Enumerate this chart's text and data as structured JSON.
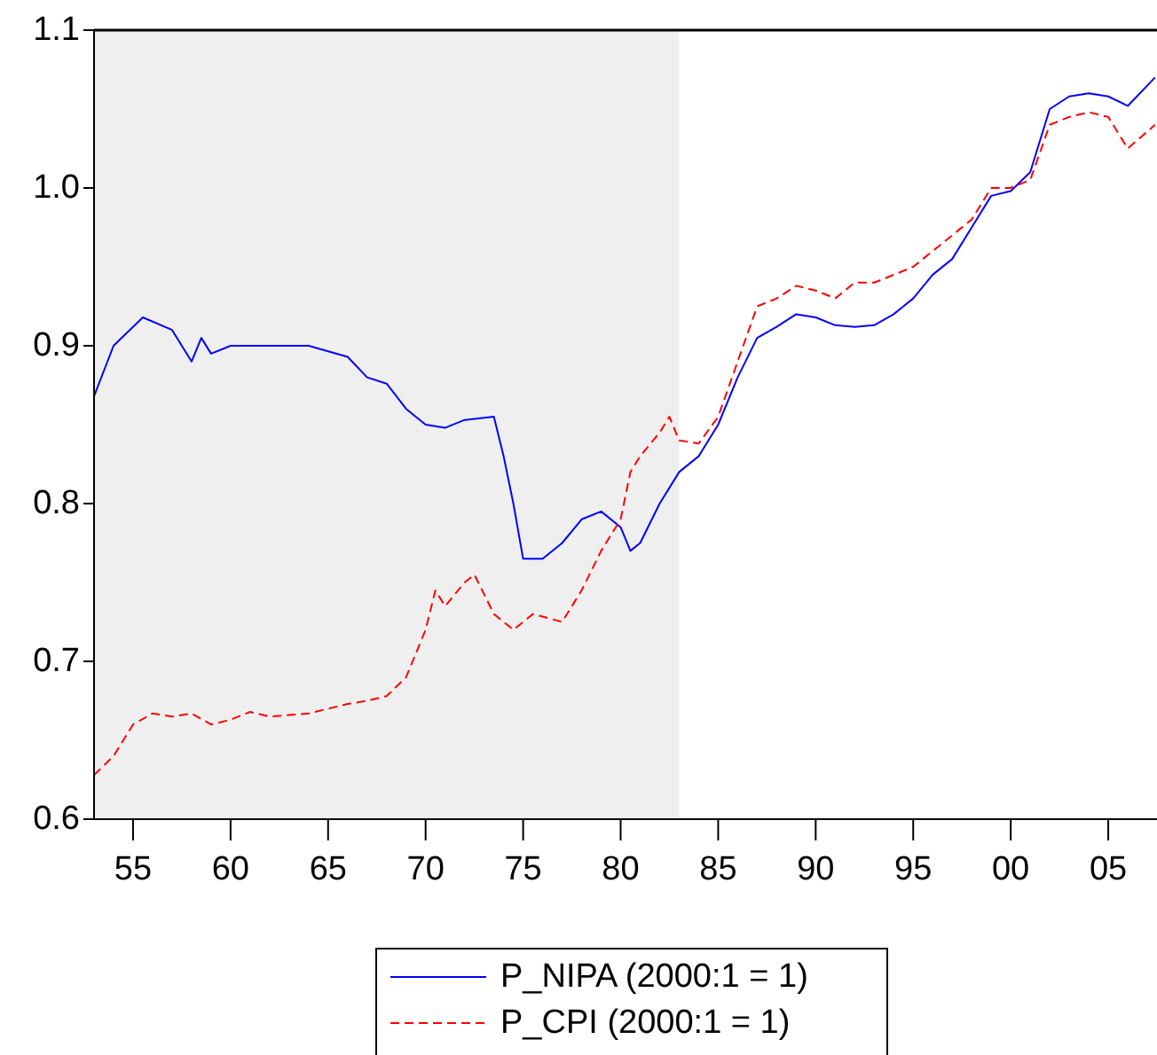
{
  "chart_data": {
    "type": "line",
    "xlim": [
      1953,
      2007.5
    ],
    "ylim": [
      0.6,
      1.1
    ],
    "xticks": [
      {
        "value": 1955,
        "label": "55"
      },
      {
        "value": 1960,
        "label": "60"
      },
      {
        "value": 1965,
        "label": "65"
      },
      {
        "value": 1970,
        "label": "70"
      },
      {
        "value": 1975,
        "label": "75"
      },
      {
        "value": 1980,
        "label": "80"
      },
      {
        "value": 1985,
        "label": "85"
      },
      {
        "value": 1990,
        "label": "90"
      },
      {
        "value": 1995,
        "label": "95"
      },
      {
        "value": 2000,
        "label": "00"
      },
      {
        "value": 2005,
        "label": "05"
      }
    ],
    "yticks": [
      {
        "value": 0.6,
        "label": "0.6"
      },
      {
        "value": 0.7,
        "label": "0.7"
      },
      {
        "value": 0.8,
        "label": "0.8"
      },
      {
        "value": 0.9,
        "label": "0.9"
      },
      {
        "value": 1.0,
        "label": "1.0"
      },
      {
        "value": 1.1,
        "label": "1.1"
      }
    ],
    "bands": [
      {
        "axis": "x",
        "from": 1953,
        "to": 1983,
        "color": "#efefef"
      }
    ],
    "legend": "bottom",
    "grid": false,
    "series": [
      {
        "name": "P_NIPA (2000:1 = 1)",
        "color": "#0000ff",
        "line_style": "solid",
        "x": [
          1953,
          1954,
          1955.5,
          1957,
          1958,
          1958.5,
          1959,
          1960,
          1962,
          1964,
          1966,
          1967,
          1968,
          1969,
          1970,
          1971,
          1972,
          1973.5,
          1974,
          1974.5,
          1975,
          1976,
          1977,
          1978,
          1979,
          1980,
          1980.5,
          1981,
          1982,
          1983,
          1984,
          1985,
          1986,
          1987,
          1988,
          1989,
          1990,
          1991,
          1992,
          1993,
          1994,
          1995,
          1996,
          1997,
          1998,
          1999,
          2000,
          2001,
          2002,
          2003,
          2004,
          2005,
          2006,
          2007.4
        ],
        "values": [
          0.868,
          0.9,
          0.918,
          0.91,
          0.89,
          0.905,
          0.895,
          0.9,
          0.9,
          0.9,
          0.893,
          0.88,
          0.876,
          0.86,
          0.85,
          0.848,
          0.853,
          0.855,
          0.83,
          0.8,
          0.765,
          0.765,
          0.775,
          0.79,
          0.795,
          0.785,
          0.77,
          0.775,
          0.8,
          0.82,
          0.83,
          0.85,
          0.88,
          0.905,
          0.912,
          0.92,
          0.918,
          0.913,
          0.912,
          0.913,
          0.92,
          0.93,
          0.945,
          0.955,
          0.975,
          0.995,
          0.998,
          1.01,
          1.05,
          1.058,
          1.06,
          1.058,
          1.052,
          1.07
        ]
      },
      {
        "name": "P_CPI (2000:1 = 1)",
        "color": "#ff0000",
        "line_style": "dashed",
        "x": [
          1953,
          1954,
          1955,
          1956,
          1957,
          1958,
          1959,
          1960,
          1961,
          1962,
          1963,
          1964,
          1965,
          1966,
          1967,
          1968,
          1969,
          1970,
          1970.5,
          1971,
          1972,
          1972.5,
          1973.5,
          1974.5,
          1975.5,
          1977,
          1978,
          1979,
          1980,
          1980.5,
          1981,
          1982,
          1982.5,
          1983,
          1984,
          1985,
          1986,
          1987,
          1988,
          1989,
          1990,
          1991,
          1992,
          1993,
          1994,
          1995,
          1996,
          1997,
          1998,
          1999,
          2000,
          2001,
          2002,
          2003,
          2004,
          2005,
          2006,
          2007.4
        ],
        "values": [
          0.628,
          0.64,
          0.66,
          0.667,
          0.665,
          0.667,
          0.66,
          0.663,
          0.668,
          0.665,
          0.666,
          0.667,
          0.67,
          0.673,
          0.675,
          0.678,
          0.69,
          0.72,
          0.745,
          0.735,
          0.75,
          0.755,
          0.73,
          0.72,
          0.73,
          0.725,
          0.745,
          0.77,
          0.79,
          0.82,
          0.83,
          0.845,
          0.855,
          0.84,
          0.838,
          0.855,
          0.89,
          0.925,
          0.93,
          0.938,
          0.935,
          0.93,
          0.94,
          0.94,
          0.945,
          0.95,
          0.96,
          0.97,
          0.98,
          1.0,
          1.0,
          1.005,
          1.04,
          1.045,
          1.048,
          1.045,
          1.025,
          1.04
        ]
      }
    ]
  }
}
